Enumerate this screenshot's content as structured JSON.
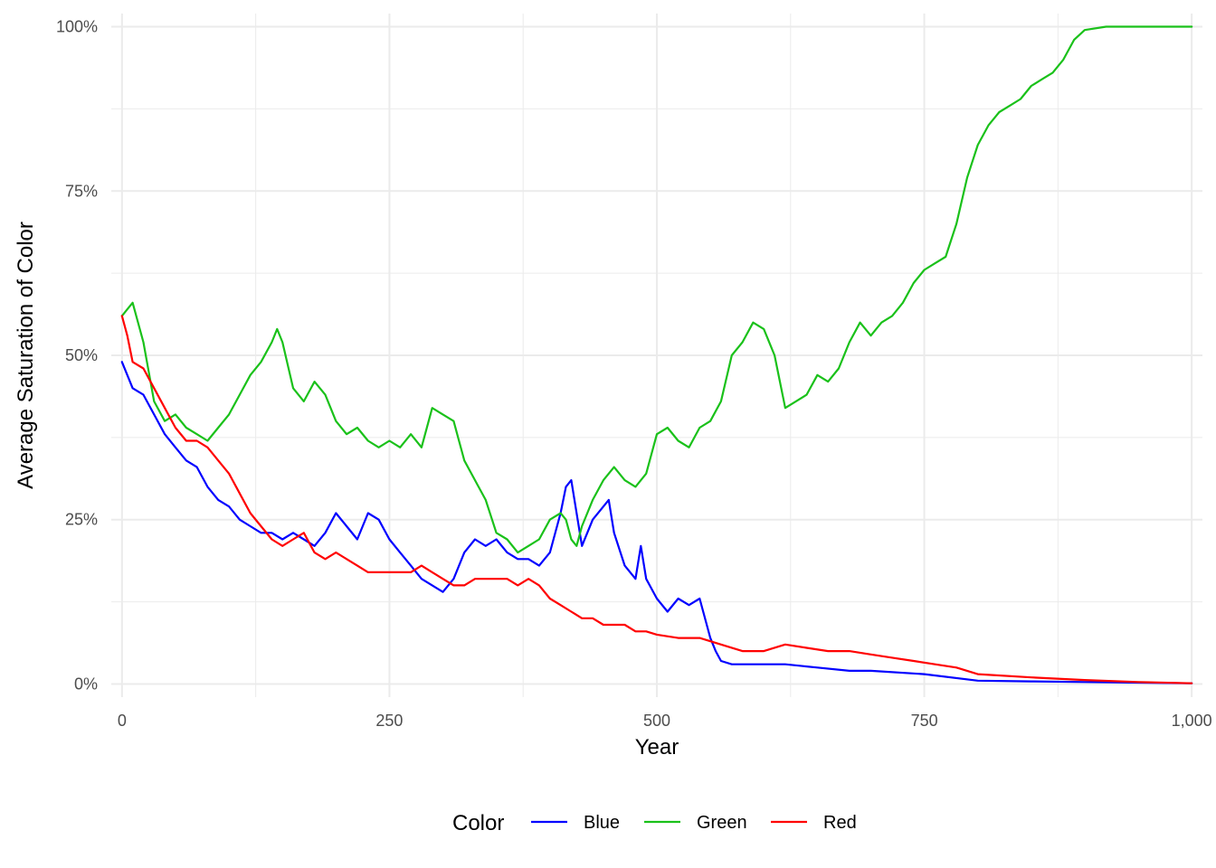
{
  "chart_data": {
    "type": "line",
    "title": "",
    "xlabel": "Year",
    "ylabel": "Average Saturation of Color",
    "xlim": [
      -10,
      1010
    ],
    "ylim": [
      -0.02,
      1.02
    ],
    "x_ticks": [
      0,
      250,
      500,
      750,
      1000
    ],
    "x_tick_labels": [
      "0",
      "250",
      "500",
      "750",
      "1,000"
    ],
    "y_ticks": [
      0,
      0.25,
      0.5,
      0.75,
      1.0
    ],
    "y_tick_labels": [
      "0%",
      "25%",
      "50%",
      "75%",
      "100%"
    ],
    "grid": true,
    "legend": {
      "title": "Color",
      "position": "bottom"
    },
    "series": [
      {
        "name": "Blue",
        "color": "#0000ff",
        "x": [
          0,
          5,
          10,
          20,
          30,
          40,
          50,
          60,
          70,
          80,
          90,
          100,
          110,
          120,
          130,
          140,
          150,
          160,
          170,
          180,
          190,
          200,
          210,
          220,
          230,
          240,
          250,
          260,
          270,
          280,
          290,
          300,
          310,
          320,
          330,
          340,
          350,
          360,
          370,
          380,
          390,
          400,
          410,
          415,
          420,
          425,
          430,
          440,
          450,
          455,
          460,
          470,
          480,
          485,
          490,
          500,
          510,
          520,
          530,
          540,
          550,
          555,
          560,
          570,
          580,
          600,
          620,
          650,
          680,
          700,
          750,
          800,
          850,
          900,
          950,
          1000
        ],
        "y": [
          0.49,
          0.47,
          0.45,
          0.44,
          0.41,
          0.38,
          0.36,
          0.34,
          0.33,
          0.3,
          0.28,
          0.27,
          0.25,
          0.24,
          0.23,
          0.23,
          0.22,
          0.23,
          0.22,
          0.21,
          0.23,
          0.26,
          0.24,
          0.22,
          0.26,
          0.25,
          0.22,
          0.2,
          0.18,
          0.16,
          0.15,
          0.14,
          0.16,
          0.2,
          0.22,
          0.21,
          0.22,
          0.2,
          0.19,
          0.19,
          0.18,
          0.2,
          0.26,
          0.3,
          0.31,
          0.26,
          0.21,
          0.25,
          0.27,
          0.28,
          0.23,
          0.18,
          0.16,
          0.21,
          0.16,
          0.13,
          0.11,
          0.13,
          0.12,
          0.13,
          0.07,
          0.05,
          0.035,
          0.03,
          0.03,
          0.03,
          0.03,
          0.025,
          0.02,
          0.02,
          0.015,
          0.005,
          0.004,
          0.003,
          0.002,
          0.001
        ]
      },
      {
        "name": "Green",
        "color": "#1ac11a",
        "x": [
          0,
          5,
          10,
          20,
          30,
          40,
          50,
          60,
          70,
          80,
          90,
          100,
          110,
          120,
          130,
          140,
          145,
          150,
          160,
          170,
          180,
          190,
          200,
          210,
          220,
          230,
          240,
          250,
          260,
          270,
          280,
          290,
          300,
          310,
          320,
          330,
          340,
          350,
          360,
          370,
          380,
          390,
          400,
          410,
          415,
          420,
          425,
          430,
          440,
          450,
          460,
          470,
          480,
          490,
          500,
          510,
          520,
          530,
          540,
          550,
          560,
          570,
          580,
          590,
          600,
          610,
          620,
          630,
          640,
          650,
          660,
          670,
          680,
          690,
          700,
          710,
          720,
          730,
          740,
          750,
          760,
          770,
          780,
          790,
          800,
          810,
          820,
          830,
          840,
          850,
          860,
          870,
          880,
          890,
          900,
          920,
          950,
          1000
        ],
        "y": [
          0.56,
          0.57,
          0.58,
          0.52,
          0.43,
          0.4,
          0.41,
          0.39,
          0.38,
          0.37,
          0.39,
          0.41,
          0.44,
          0.47,
          0.49,
          0.52,
          0.54,
          0.52,
          0.45,
          0.43,
          0.46,
          0.44,
          0.4,
          0.38,
          0.39,
          0.37,
          0.36,
          0.37,
          0.36,
          0.38,
          0.36,
          0.42,
          0.41,
          0.4,
          0.34,
          0.31,
          0.28,
          0.23,
          0.22,
          0.2,
          0.21,
          0.22,
          0.25,
          0.26,
          0.25,
          0.22,
          0.21,
          0.24,
          0.28,
          0.31,
          0.33,
          0.31,
          0.3,
          0.32,
          0.38,
          0.39,
          0.37,
          0.36,
          0.39,
          0.4,
          0.43,
          0.5,
          0.52,
          0.55,
          0.54,
          0.5,
          0.42,
          0.43,
          0.44,
          0.47,
          0.46,
          0.48,
          0.52,
          0.55,
          0.53,
          0.55,
          0.56,
          0.58,
          0.61,
          0.63,
          0.64,
          0.65,
          0.7,
          0.77,
          0.82,
          0.85,
          0.87,
          0.88,
          0.89,
          0.91,
          0.92,
          0.93,
          0.95,
          0.98,
          0.995,
          1.0,
          1.0,
          1.0
        ]
      },
      {
        "name": "Red",
        "color": "#ff0000",
        "x": [
          0,
          5,
          10,
          20,
          30,
          40,
          50,
          60,
          70,
          80,
          90,
          100,
          110,
          120,
          130,
          140,
          150,
          160,
          170,
          180,
          190,
          200,
          210,
          220,
          230,
          240,
          250,
          260,
          270,
          280,
          290,
          300,
          310,
          320,
          330,
          340,
          350,
          360,
          370,
          380,
          390,
          400,
          410,
          420,
          430,
          440,
          450,
          460,
          470,
          480,
          490,
          500,
          520,
          540,
          560,
          580,
          600,
          620,
          640,
          660,
          680,
          700,
          720,
          740,
          760,
          780,
          800,
          850,
          900,
          950,
          1000
        ],
        "y": [
          0.56,
          0.53,
          0.49,
          0.48,
          0.45,
          0.42,
          0.39,
          0.37,
          0.37,
          0.36,
          0.34,
          0.32,
          0.29,
          0.26,
          0.24,
          0.22,
          0.21,
          0.22,
          0.23,
          0.2,
          0.19,
          0.2,
          0.19,
          0.18,
          0.17,
          0.17,
          0.17,
          0.17,
          0.17,
          0.18,
          0.17,
          0.16,
          0.15,
          0.15,
          0.16,
          0.16,
          0.16,
          0.16,
          0.15,
          0.16,
          0.15,
          0.13,
          0.12,
          0.11,
          0.1,
          0.1,
          0.09,
          0.09,
          0.09,
          0.08,
          0.08,
          0.075,
          0.07,
          0.07,
          0.06,
          0.05,
          0.05,
          0.06,
          0.055,
          0.05,
          0.05,
          0.045,
          0.04,
          0.035,
          0.03,
          0.025,
          0.015,
          0.01,
          0.006,
          0.003,
          0.001
        ]
      }
    ]
  }
}
